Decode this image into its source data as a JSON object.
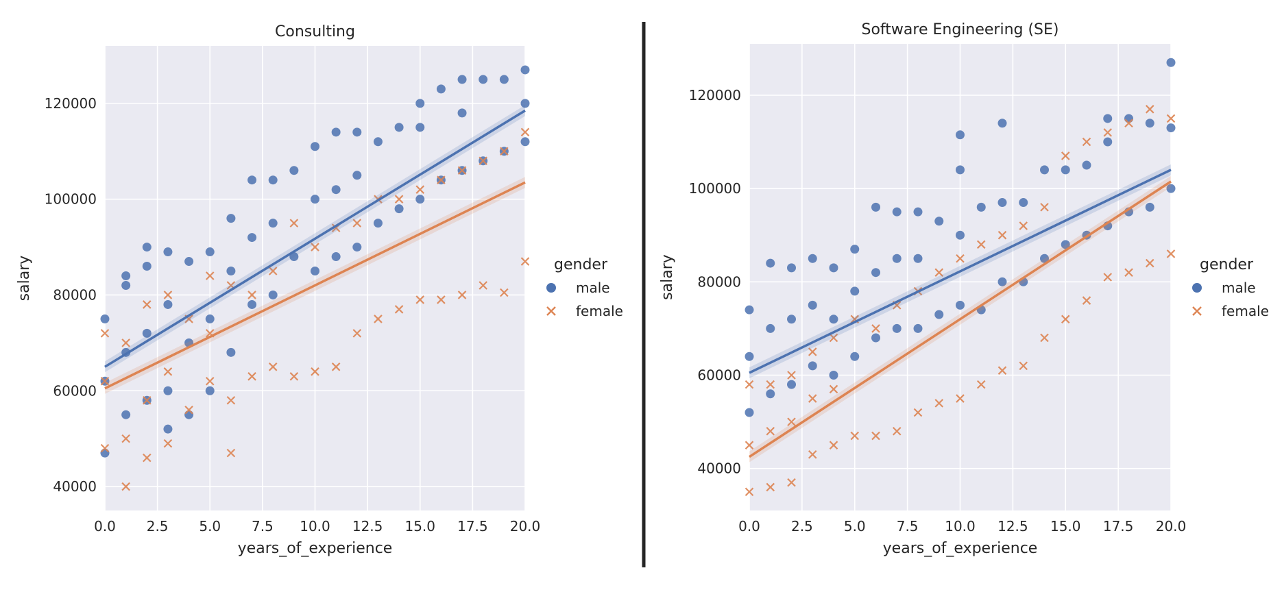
{
  "chart_data": [
    {
      "type": "scatter",
      "title": "Consulting",
      "xlabel": "years_of_experience",
      "ylabel": "salary",
      "xlim": [
        0,
        20
      ],
      "ylim": [
        35000,
        132000
      ],
      "xticks": [
        "0.0",
        "2.5",
        "5.0",
        "7.5",
        "10.0",
        "12.5",
        "15.0",
        "17.5",
        "20.0"
      ],
      "yticks": [
        "40000",
        "60000",
        "80000",
        "100000",
        "120000"
      ],
      "grid": true,
      "legend": {
        "title": "gender",
        "placement": "right",
        "entries": [
          "male",
          "female"
        ]
      },
      "series": [
        {
          "name": "male",
          "marker": "circle",
          "color": "#4c72b0",
          "trend": {
            "x": [
              0,
              20
            ],
            "y": [
              65000,
              118500
            ]
          },
          "x": [
            0,
            0,
            0,
            1,
            1,
            1,
            1,
            2,
            2,
            2,
            2,
            3,
            3,
            3,
            3,
            4,
            4,
            4,
            5,
            5,
            5,
            6,
            6,
            6,
            7,
            7,
            7,
            8,
            8,
            8,
            9,
            9,
            10,
            10,
            10,
            11,
            11,
            11,
            12,
            12,
            12,
            13,
            13,
            14,
            14,
            15,
            15,
            15,
            16,
            16,
            17,
            17,
            17,
            18,
            18,
            19,
            19,
            20,
            20,
            20
          ],
          "y": [
            47000,
            62000,
            75000,
            55000,
            68000,
            82000,
            84000,
            58000,
            72000,
            86000,
            90000,
            52000,
            60000,
            78000,
            89000,
            55000,
            70000,
            87000,
            60000,
            75000,
            89000,
            68000,
            85000,
            96000,
            78000,
            92000,
            104000,
            80000,
            95000,
            104000,
            88000,
            106000,
            85000,
            100000,
            111000,
            88000,
            102000,
            114000,
            90000,
            105000,
            114000,
            95000,
            112000,
            98000,
            115000,
            100000,
            115000,
            120000,
            104000,
            123000,
            106000,
            118000,
            125000,
            108000,
            125000,
            110000,
            125000,
            112000,
            120000,
            127000
          ]
        },
        {
          "name": "female",
          "marker": "x",
          "color": "#dd8452",
          "trend": {
            "x": [
              0,
              20
            ],
            "y": [
              60500,
              103500
            ]
          },
          "x": [
            0,
            0,
            0,
            1,
            1,
            1,
            2,
            2,
            2,
            3,
            3,
            3,
            4,
            4,
            5,
            5,
            5,
            6,
            6,
            6,
            7,
            7,
            8,
            8,
            9,
            9,
            10,
            10,
            11,
            11,
            12,
            12,
            13,
            13,
            14,
            14,
            15,
            15,
            16,
            16,
            17,
            17,
            18,
            18,
            19,
            19,
            20,
            20
          ],
          "y": [
            48000,
            62000,
            72000,
            40000,
            50000,
            70000,
            46000,
            58000,
            78000,
            49000,
            64000,
            80000,
            56000,
            75000,
            62000,
            72000,
            84000,
            47000,
            58000,
            82000,
            63000,
            80000,
            65000,
            85000,
            63000,
            95000,
            64000,
            90000,
            65000,
            94000,
            72000,
            95000,
            75000,
            100000,
            77000,
            100000,
            79000,
            102000,
            79000,
            104000,
            80000,
            106000,
            82000,
            108000,
            80500,
            110000,
            87000,
            114000
          ]
        }
      ]
    },
    {
      "type": "scatter",
      "title": "Software Engineering (SE)",
      "xlabel": "years_of_experience",
      "ylabel": "salary",
      "xlim": [
        0,
        20
      ],
      "ylim": [
        31000,
        131000
      ],
      "xticks": [
        "0.0",
        "2.5",
        "5.0",
        "7.5",
        "10.0",
        "12.5",
        "15.0",
        "17.5",
        "20.0"
      ],
      "yticks": [
        "40000",
        "60000",
        "80000",
        "100000",
        "120000"
      ],
      "grid": true,
      "legend": {
        "title": "gender",
        "placement": "right",
        "entries": [
          "male",
          "female"
        ]
      },
      "series": [
        {
          "name": "male",
          "marker": "circle",
          "color": "#4c72b0",
          "trend": {
            "x": [
              0,
              20
            ],
            "y": [
              60500,
              104000
            ]
          },
          "x": [
            0,
            0,
            0,
            1,
            1,
            1,
            2,
            2,
            2,
            3,
            3,
            3,
            4,
            4,
            4,
            5,
            5,
            5,
            6,
            6,
            6,
            7,
            7,
            7,
            8,
            8,
            8,
            9,
            9,
            10,
            10,
            10,
            10,
            11,
            11,
            12,
            12,
            12,
            13,
            13,
            14,
            14,
            15,
            15,
            16,
            16,
            17,
            17,
            17,
            18,
            18,
            19,
            19,
            20,
            20,
            20
          ],
          "y": [
            52000,
            64000,
            74000,
            56000,
            70000,
            84000,
            58000,
            72000,
            83000,
            62000,
            75000,
            85000,
            60000,
            72000,
            83000,
            64000,
            78000,
            87000,
            68000,
            82000,
            96000,
            70000,
            85000,
            95000,
            70000,
            85000,
            95000,
            73000,
            93000,
            75000,
            90000,
            104000,
            111500,
            74000,
            96000,
            80000,
            97000,
            114000,
            80000,
            97000,
            85000,
            104000,
            88000,
            104000,
            90000,
            105000,
            92000,
            110000,
            115000,
            95000,
            115000,
            96000,
            114000,
            100000,
            113000,
            127000
          ]
        },
        {
          "name": "female",
          "marker": "x",
          "color": "#dd8452",
          "trend": {
            "x": [
              0,
              20
            ],
            "y": [
              42500,
              101500
            ]
          },
          "x": [
            0,
            0,
            0,
            1,
            1,
            1,
            2,
            2,
            2,
            3,
            3,
            3,
            4,
            4,
            4,
            5,
            5,
            6,
            6,
            7,
            7,
            8,
            8,
            9,
            9,
            10,
            10,
            11,
            11,
            12,
            12,
            13,
            13,
            14,
            14,
            15,
            15,
            16,
            16,
            17,
            17,
            18,
            18,
            19,
            19,
            20,
            20
          ],
          "y": [
            35000,
            45000,
            58000,
            36000,
            48000,
            58000,
            37000,
            50000,
            60000,
            43000,
            55000,
            65000,
            45000,
            57000,
            68000,
            47000,
            72000,
            47000,
            70000,
            48000,
            75000,
            52000,
            78000,
            54000,
            82000,
            55000,
            85000,
            58000,
            88000,
            61000,
            90000,
            62000,
            92000,
            68000,
            96000,
            72000,
            107000,
            76000,
            110000,
            81000,
            112000,
            82000,
            114000,
            84000,
            117000,
            86000,
            115000
          ]
        }
      ]
    }
  ]
}
